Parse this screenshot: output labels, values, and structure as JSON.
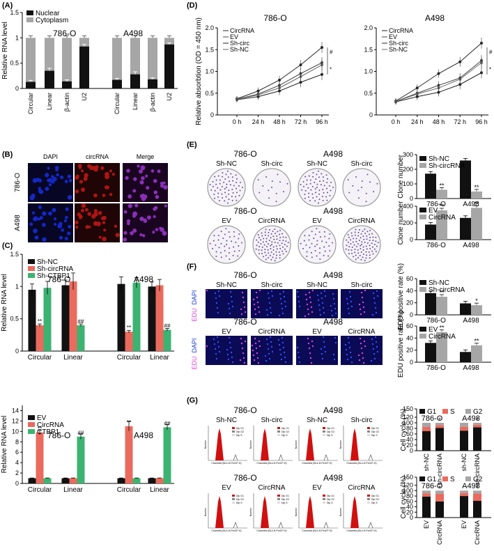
{
  "panel_labels": {
    "A": "(A)",
    "B": "(B)",
    "C": "(C)",
    "D": "(D)",
    "E": "(E)",
    "F": "(F)",
    "G": "(G)"
  },
  "colors": {
    "black": "#111111",
    "gray": "#a6a6a6",
    "red": "#ea6b5e",
    "green": "#3cb371",
    "blue_cell": "#1428c8",
    "red_cell": "#b01414",
    "magenta": "#e040e0"
  },
  "cell_lines": {
    "o786": "786-O",
    "a498": "A498"
  },
  "panelB": {
    "headers": [
      "DAPI",
      "circRNA",
      "Merge"
    ],
    "rows": [
      "786-O",
      "A498"
    ]
  },
  "panelE": {
    "top_labels": [
      "Sh-NC",
      "Sh-circ",
      "Sh-NC",
      "Sh-circ"
    ],
    "bottom_labels": [
      "EV",
      "CircRNA",
      "EV",
      "CircRNA"
    ]
  },
  "panelF": {
    "top_labels": [
      "Sh-NC",
      "Sh-circ",
      "Sh-NC",
      "Sh-circ"
    ],
    "bottom_labels": [
      "EV",
      "CircRNA",
      "EV",
      "CircRNA"
    ],
    "side_edu": "EDU",
    "side_dapi": "DAPI"
  },
  "panelG": {
    "top_labels": [
      "Sh-NC",
      "Sh-circ",
      "Sh-NC",
      "Sh-circ"
    ],
    "bottom_labels": [
      "EV",
      "CircRNA",
      "EV",
      "CircRNA"
    ],
    "flow_legend": [
      "Dip G1",
      "Dip G2",
      "Dip S"
    ],
    "flow_xlabel": "Channels (BL4-H-PerCP-H)",
    "flow_ylabel": "Number"
  },
  "chart_data": [
    {
      "id": "A",
      "type": "bar",
      "ylabel": "Relative RNA level",
      "ylim": [
        0,
        1.5
      ],
      "yticks": [
        "0",
        "0.5",
        "1",
        "1.5"
      ],
      "legend": [
        "Nuclear",
        "Cytoplasm"
      ],
      "groups": [
        "786-O",
        "A498"
      ],
      "categories": [
        "Circular",
        "Linear",
        "β-actin",
        "U2",
        "Circular",
        "Linear",
        "β-actin",
        "U2"
      ],
      "series": [
        {
          "name": "Nuclear",
          "values": [
            0.13,
            0.35,
            0.14,
            0.83,
            0.17,
            0.28,
            0.18,
            0.87
          ]
        },
        {
          "name": "Cytoplasm",
          "values": [
            0.87,
            0.65,
            0.86,
            0.17,
            0.83,
            0.72,
            0.82,
            0.13
          ]
        }
      ],
      "errors": [
        0.03,
        0.05,
        0.03,
        0.04,
        0.03,
        0.05,
        0.03,
        0.03
      ]
    },
    {
      "id": "C1",
      "type": "bar",
      "ylabel": "Relative RNA level",
      "ylim": [
        0,
        1.5
      ],
      "yticks": [
        "0",
        "0.5",
        "1",
        "1.5"
      ],
      "legend": [
        "Sh-NC",
        "Sh-circRNA",
        "Sh-CTBP1"
      ],
      "groups": [
        "786-O",
        "A498"
      ],
      "categories": [
        "Circular",
        "Linear",
        "Circular",
        "Linear"
      ],
      "series": [
        {
          "name": "Sh-NC",
          "values": [
            0.95,
            1.02,
            1.04,
            1.0
          ]
        },
        {
          "name": "Sh-circRNA",
          "values": [
            0.4,
            1.08,
            0.3,
            1.02
          ]
        },
        {
          "name": "Sh-CTBP1",
          "values": [
            0.98,
            0.4,
            1.06,
            0.33
          ]
        }
      ],
      "errors": [
        [
          0.09,
          0.08,
          0.11,
          0.07
        ],
        [
          0.02,
          0.13,
          0.02,
          0.09
        ],
        [
          0.1,
          0.02,
          0.08,
          0.02
        ]
      ],
      "marks": [
        {
          "cat": 0,
          "series": 1,
          "text": "**"
        },
        {
          "cat": 1,
          "series": 2,
          "text": "##"
        },
        {
          "cat": 2,
          "series": 1,
          "text": "**"
        },
        {
          "cat": 3,
          "series": 2,
          "text": "##"
        }
      ]
    },
    {
      "id": "C2",
      "type": "bar",
      "ylabel": "Relative RNA level",
      "ylim": [
        0,
        15
      ],
      "yticks": [
        "0",
        "2",
        "4",
        "6",
        "8",
        "10",
        "12",
        "14"
      ],
      "legend": [
        "EV",
        "CircRNA",
        "CTBP1"
      ],
      "groups": [
        "786-O",
        "A498"
      ],
      "categories": [
        "Circular",
        "Linear",
        "Circular",
        "Linear"
      ],
      "series": [
        {
          "name": "EV",
          "values": [
            1.0,
            1.0,
            1.0,
            1.0
          ]
        },
        {
          "name": "CircRNA",
          "values": [
            9.8,
            1.0,
            11.0,
            1.0
          ]
        },
        {
          "name": "CTBP1",
          "values": [
            1.0,
            9.0,
            1.0,
            10.8
          ]
        }
      ],
      "errors": [
        [
          0.05,
          0.05,
          0.05,
          0.05
        ],
        [
          0.4,
          0.05,
          0.9,
          0.05
        ],
        [
          0.05,
          0.5,
          0.05,
          0.5
        ]
      ],
      "marks": [
        {
          "cat": 0,
          "series": 1,
          "text": "**"
        },
        {
          "cat": 1,
          "series": 2,
          "text": "##"
        },
        {
          "cat": 2,
          "series": 1,
          "text": "**"
        },
        {
          "cat": 3,
          "series": 2,
          "text": "##"
        }
      ]
    },
    {
      "id": "D1",
      "type": "line",
      "title": "786-O",
      "ylabel": "Relative absorbtion (OD = 450 nm)",
      "ylim": [
        0,
        2
      ],
      "yticks": [
        "0",
        "0.5",
        "1.0",
        "1.5",
        "2.0"
      ],
      "x": [
        "0 h",
        "24 h",
        "48 h",
        "72 h",
        "96 h"
      ],
      "legend": [
        "CircRNA",
        "EV",
        "Sh-circ",
        "Sh-NC"
      ],
      "series": [
        {
          "name": "CircRNA",
          "values": [
            0.37,
            0.55,
            0.8,
            1.15,
            1.55
          ]
        },
        {
          "name": "EV",
          "values": [
            0.36,
            0.48,
            0.68,
            0.95,
            1.2
          ]
        },
        {
          "name": "Sh-circ",
          "values": [
            0.35,
            0.42,
            0.55,
            0.75,
            0.93
          ]
        },
        {
          "name": "Sh-NC",
          "values": [
            0.36,
            0.46,
            0.62,
            0.88,
            1.15
          ]
        }
      ],
      "marks": [
        "#",
        "*"
      ]
    },
    {
      "id": "D2",
      "type": "line",
      "title": "A498",
      "ylim": [
        0,
        2
      ],
      "yticks": [
        "0",
        "0.5",
        "1.0",
        "1.5",
        "2.0"
      ],
      "x": [
        "0 h",
        "24 h",
        "48 h",
        "72 h",
        "96 h"
      ],
      "legend": [
        "CircRNA",
        "EV",
        "Sh-circ",
        "Sh-NC"
      ],
      "series": [
        {
          "name": "CircRNA",
          "values": [
            0.32,
            0.62,
            0.95,
            1.22,
            1.65
          ]
        },
        {
          "name": "EV",
          "values": [
            0.31,
            0.5,
            0.68,
            0.85,
            1.25
          ]
        },
        {
          "name": "Sh-circ",
          "values": [
            0.3,
            0.42,
            0.52,
            0.7,
            0.97
          ]
        },
        {
          "name": "Sh-NC",
          "values": [
            0.31,
            0.48,
            0.62,
            0.82,
            1.2
          ]
        }
      ],
      "marks": [
        "#",
        "*"
      ]
    },
    {
      "id": "E1",
      "type": "bar",
      "ylabel": "Clone number",
      "ylim": [
        0,
        300
      ],
      "yticks": [
        "0",
        "100",
        "200",
        "300"
      ],
      "legend": [
        "Sh-NC",
        "Sh-circRNA"
      ],
      "categories": [
        "786-O",
        "A498"
      ],
      "series": [
        {
          "name": "Sh-NC",
          "values": [
            170,
            260
          ]
        },
        {
          "name": "Sh-circRNA",
          "values": [
            60,
            48
          ]
        }
      ],
      "marks": [
        "**",
        "**"
      ]
    },
    {
      "id": "E2",
      "type": "bar",
      "ylabel": "Clone number",
      "ylim": [
        0,
        400
      ],
      "yticks": [
        "0",
        "200",
        "400"
      ],
      "legend": [
        "EV",
        "CircRNA"
      ],
      "categories": [
        "786-O",
        "A498"
      ],
      "series": [
        {
          "name": "EV",
          "values": [
            180,
            260
          ]
        },
        {
          "name": "CircRNA",
          "values": [
            350,
            380
          ]
        }
      ],
      "marks": [
        "**",
        "**"
      ]
    },
    {
      "id": "F1",
      "type": "bar",
      "ylabel": "EDU positive rate (%)",
      "ylim": [
        0,
        60
      ],
      "yticks": [
        "0",
        "20",
        "40",
        "60"
      ],
      "legend": [
        "Sh-NC",
        "Sh-circRNA"
      ],
      "categories": [
        "786-O",
        "A498"
      ],
      "series": [
        {
          "name": "Sh-NC",
          "values": [
            36,
            19
          ]
        },
        {
          "name": "Sh-circRNA",
          "values": [
            30,
            16
          ]
        }
      ],
      "marks": [
        "**",
        "*"
      ]
    },
    {
      "id": "F2",
      "type": "bar",
      "ylabel": "EDU positive rate (%)",
      "ylim": [
        0,
        60
      ],
      "yticks": [
        "0",
        "20",
        "40",
        "60"
      ],
      "legend": [
        "EV",
        "CircRNA"
      ],
      "categories": [
        "786-O",
        "A498"
      ],
      "series": [
        {
          "name": "EV",
          "values": [
            32,
            17
          ]
        },
        {
          "name": "CircRNA",
          "values": [
            50,
            28
          ]
        }
      ],
      "marks": [
        "**",
        "**"
      ]
    },
    {
      "id": "G1",
      "type": "bar",
      "ylabel": "Cell cycle (%)",
      "ylim": [
        0,
        150
      ],
      "yticks": [
        "0",
        "20",
        "40",
        "60",
        "80",
        "100",
        "120",
        "150"
      ],
      "legend": [
        "G1",
        "S",
        "G2"
      ],
      "groups": [
        "786-O",
        "A498"
      ],
      "categories": [
        "sh-NC",
        "sh-circRNA",
        "sh-NC",
        "sh-circRNA"
      ],
      "series": [
        {
          "name": "G1",
          "values": [
            70,
            82,
            72,
            84
          ]
        },
        {
          "name": "S",
          "values": [
            15,
            10,
            14,
            9
          ]
        },
        {
          "name": "G2",
          "values": [
            15,
            8,
            14,
            7
          ]
        }
      ],
      "marks": [
        "*",
        "*"
      ]
    },
    {
      "id": "G2",
      "type": "bar",
      "ylabel": "Cell cycle (%)",
      "ylim": [
        0,
        150
      ],
      "yticks": [
        "0",
        "20",
        "40",
        "60",
        "80",
        "100",
        "120",
        "150"
      ],
      "legend": [
        "G1",
        "S",
        "G2"
      ],
      "groups": [
        "786-O",
        "A498"
      ],
      "categories": [
        "EV",
        "CircRNA",
        "EV",
        "CircRNA"
      ],
      "series": [
        {
          "name": "G1",
          "values": [
            78,
            60,
            80,
            62
          ]
        },
        {
          "name": "S",
          "values": [
            12,
            28,
            11,
            27
          ]
        },
        {
          "name": "G2",
          "values": [
            10,
            12,
            9,
            11
          ]
        }
      ],
      "marks": [
        "*",
        "*"
      ]
    }
  ]
}
